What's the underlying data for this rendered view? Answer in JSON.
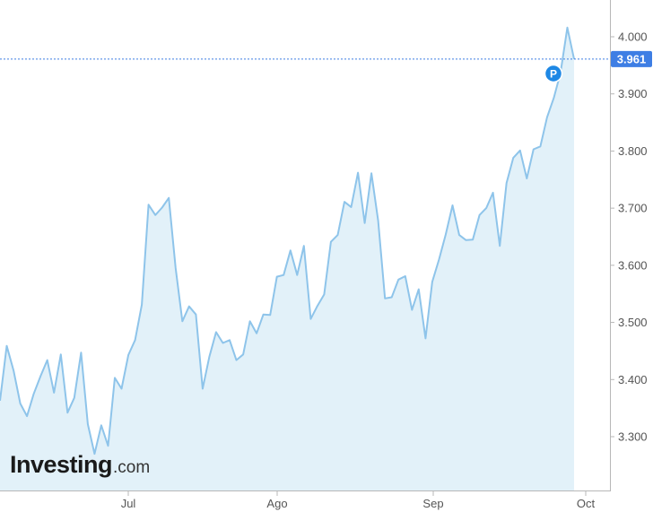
{
  "brand": {
    "logo_text": "Investing",
    "logo_suffix": ".com"
  },
  "chart_data": {
    "type": "area",
    "title": "",
    "xlabel": "",
    "ylabel": "",
    "x_tick_labels": [
      "Jul",
      "Ago",
      "Sep",
      "Oct"
    ],
    "y_tick_labels": [
      "3.300",
      "3.400",
      "3.500",
      "3.600",
      "3.700",
      "3.800",
      "3.900",
      "4.000"
    ],
    "ylim": [
      3.2,
      4.06
    ],
    "grid": false,
    "last_value_label": "3.961",
    "last_value": 3.961,
    "marker_label": "P",
    "colors": {
      "line": "#8ec4ea",
      "fill": "#e2f1f9",
      "axis": "#b7b7b7",
      "price_badge": "#3e7ee4",
      "marker": "#1e88e5",
      "tick_text": "#555555"
    },
    "series": [
      {
        "values": [
          3.363,
          3.459,
          3.416,
          3.358,
          3.336,
          3.375,
          3.406,
          3.434,
          3.377,
          3.444,
          3.342,
          3.368,
          3.447,
          3.322,
          3.27,
          3.32,
          3.284,
          3.403,
          3.384,
          3.443,
          3.469,
          3.531,
          3.706,
          3.688,
          3.701,
          3.718,
          3.595,
          3.502,
          3.528,
          3.514,
          3.384,
          3.44,
          3.483,
          3.464,
          3.469,
          3.434,
          3.444,
          3.502,
          3.481,
          3.514,
          3.513,
          3.58,
          3.583,
          3.626,
          3.583,
          3.634,
          3.506,
          3.529,
          3.549,
          3.641,
          3.653,
          3.711,
          3.702,
          3.762,
          3.674,
          3.761,
          3.678,
          3.542,
          3.544,
          3.575,
          3.581,
          3.522,
          3.558,
          3.472,
          3.571,
          3.61,
          3.654,
          3.705,
          3.653,
          3.644,
          3.645,
          3.688,
          3.7,
          3.727,
          3.634,
          3.744,
          3.788,
          3.801,
          3.752,
          3.803,
          3.808,
          3.859,
          3.893,
          3.937,
          4.016,
          3.961
        ]
      }
    ]
  }
}
